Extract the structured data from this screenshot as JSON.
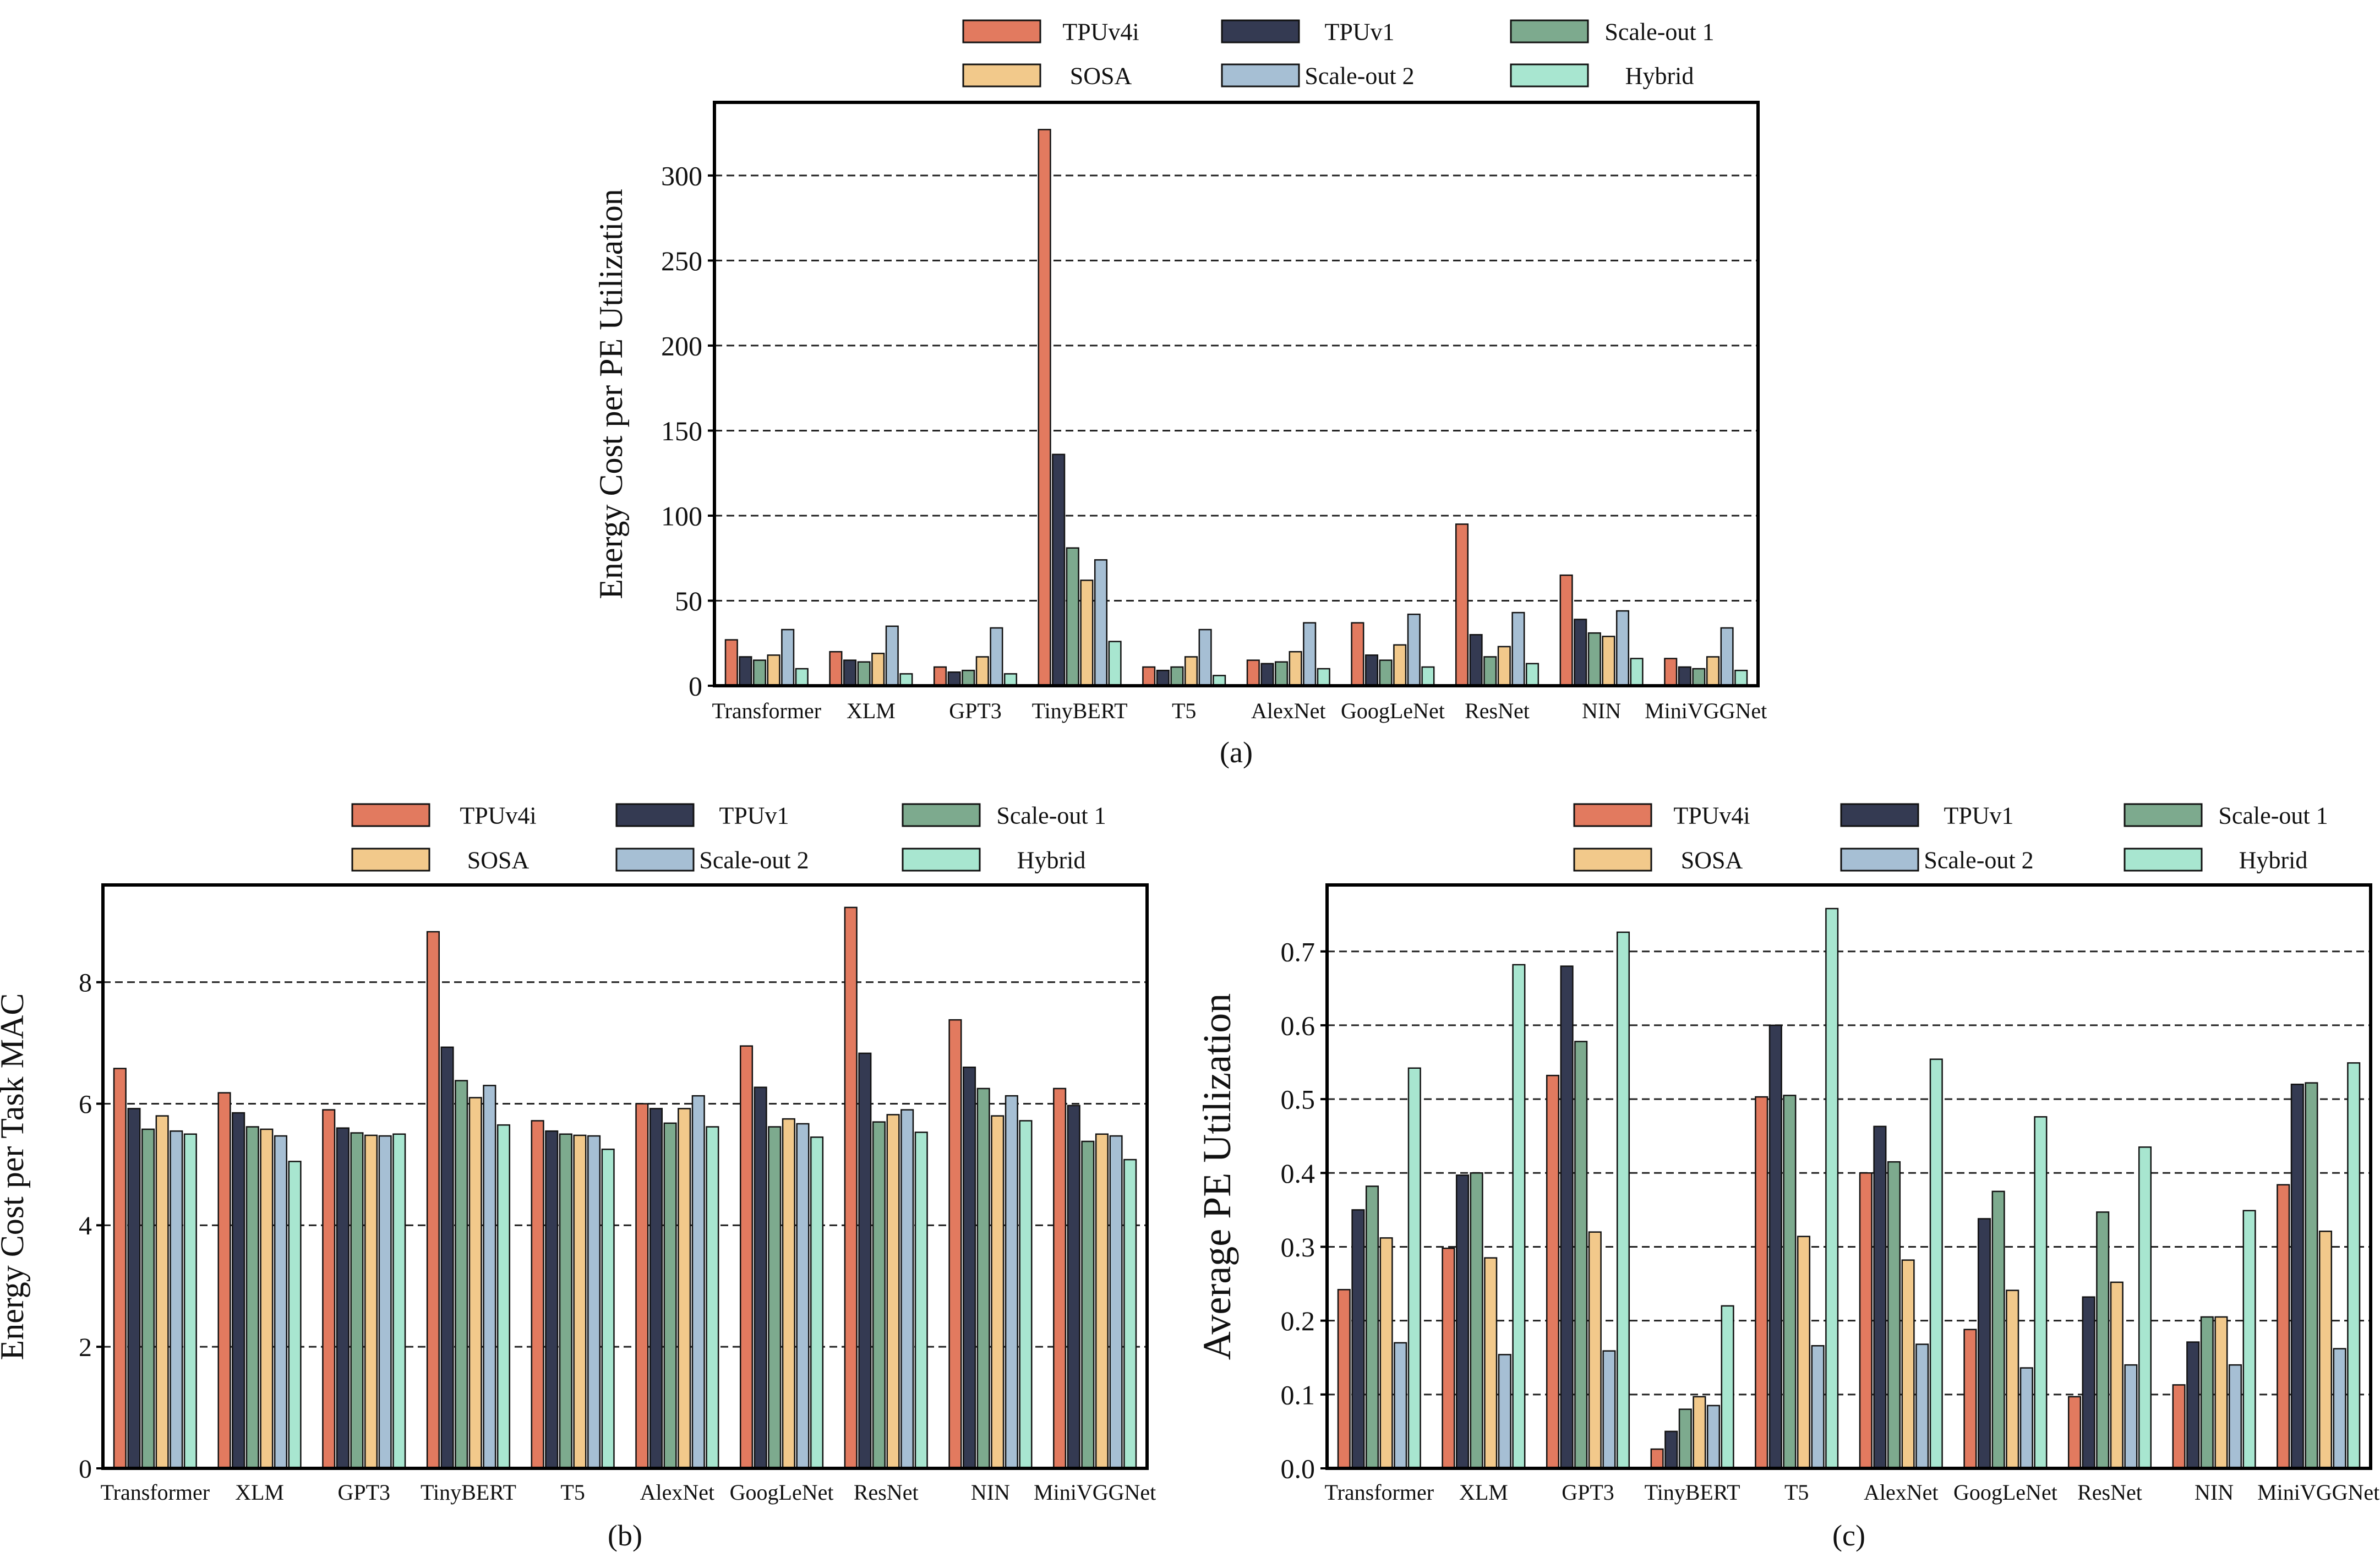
{
  "figure": {
    "series_colors": [
      "#e27a5f",
      "#343a52",
      "#7daa8e",
      "#f2c98b",
      "#a6bfd4",
      "#a8e6d0"
    ],
    "bar_edge": "#111111"
  },
  "chart_data": [
    {
      "type": "bar",
      "panel": "a",
      "caption": "(a)",
      "ylabel": "Energy Cost per PE Utilization",
      "ylim": [
        0,
        343
      ],
      "yticks": [
        0,
        50,
        100,
        150,
        200,
        250,
        300
      ],
      "ytick_labels": [
        "0",
        "50",
        "100",
        "150",
        "200",
        "250",
        "300"
      ],
      "grid": "dashed horizontal",
      "legend": "top",
      "categories": [
        "Transformer",
        "XLM",
        "GPT3",
        "TinyBERT",
        "T5",
        "AlexNet",
        "GoogLeNet",
        "ResNet",
        "NIN",
        "MiniVGGNet"
      ],
      "series": [
        {
          "name": "TPUv4i",
          "values": [
            27,
            20,
            11,
            327,
            11,
            15,
            37,
            95,
            65,
            16
          ]
        },
        {
          "name": "TPUv1",
          "values": [
            17,
            15,
            8,
            136,
            9,
            13,
            18,
            30,
            39,
            11
          ]
        },
        {
          "name": "Scale-out 1",
          "values": [
            15,
            14,
            9,
            81,
            11,
            14,
            15,
            17,
            31,
            10
          ]
        },
        {
          "name": "SOSA",
          "values": [
            18,
            19,
            17,
            62,
            17,
            20,
            24,
            23,
            29,
            17
          ]
        },
        {
          "name": "Scale-out 2",
          "values": [
            33,
            35,
            34,
            74,
            33,
            37,
            42,
            43,
            44,
            34
          ]
        },
        {
          "name": "Hybrid",
          "values": [
            10,
            7,
            7,
            26,
            6,
            10,
            11,
            13,
            16,
            9
          ]
        }
      ]
    },
    {
      "type": "bar",
      "panel": "b",
      "caption": "(b)",
      "ylabel": "Energy Cost per Task MAC",
      "ylim": [
        0,
        9.6
      ],
      "yticks": [
        0,
        2,
        4,
        6,
        8
      ],
      "ytick_labels": [
        "0",
        "2",
        "4",
        "6",
        "8"
      ],
      "grid": "dashed horizontal",
      "legend": "top",
      "categories": [
        "Transformer",
        "XLM",
        "GPT3",
        "TinyBERT",
        "T5",
        "AlexNet",
        "GoogLeNet",
        "ResNet",
        "NIN",
        "MiniVGGNet"
      ],
      "series": [
        {
          "name": "TPUv4i",
          "values": [
            6.58,
            6.18,
            5.9,
            8.83,
            5.72,
            6.0,
            6.95,
            9.23,
            7.38,
            6.25
          ]
        },
        {
          "name": "TPUv1",
          "values": [
            5.92,
            5.85,
            5.6,
            6.93,
            5.55,
            5.92,
            6.27,
            6.83,
            6.6,
            5.97
          ]
        },
        {
          "name": "Scale-out 1",
          "values": [
            5.58,
            5.62,
            5.52,
            6.38,
            5.5,
            5.68,
            5.62,
            5.7,
            6.25,
            5.38
          ]
        },
        {
          "name": "SOSA",
          "values": [
            5.8,
            5.58,
            5.48,
            6.1,
            5.48,
            5.92,
            5.75,
            5.82,
            5.8,
            5.5
          ]
        },
        {
          "name": "Scale-out 2",
          "values": [
            5.55,
            5.47,
            5.47,
            6.3,
            5.47,
            6.13,
            5.67,
            5.9,
            6.13,
            5.47
          ]
        },
        {
          "name": "Hybrid",
          "values": [
            5.5,
            5.05,
            5.5,
            5.65,
            5.25,
            5.62,
            5.45,
            5.53,
            5.72,
            5.08
          ]
        }
      ]
    },
    {
      "type": "bar",
      "panel": "c",
      "caption": "(c)",
      "ylabel": "Average PE Utilization",
      "ylim": [
        0,
        0.79
      ],
      "yticks": [
        0.0,
        0.1,
        0.2,
        0.3,
        0.4,
        0.5,
        0.6,
        0.7
      ],
      "ytick_labels": [
        "0.0",
        "0.1",
        "0.2",
        "0.3",
        "0.4",
        "0.5",
        "0.6",
        "0.7"
      ],
      "grid": "dashed horizontal",
      "legend": "top",
      "categories": [
        "Transformer",
        "XLM",
        "GPT3",
        "TinyBERT",
        "T5",
        "AlexNet",
        "GoogLeNet",
        "ResNet",
        "NIN",
        "MiniVGGNet"
      ],
      "series": [
        {
          "name": "TPUv4i",
          "values": [
            0.242,
            0.298,
            0.532,
            0.026,
            0.503,
            0.4,
            0.188,
            0.097,
            0.113,
            0.384
          ]
        },
        {
          "name": "TPUv1",
          "values": [
            0.35,
            0.397,
            0.68,
            0.05,
            0.6,
            0.463,
            0.338,
            0.232,
            0.171,
            0.52
          ]
        },
        {
          "name": "Scale-out 1",
          "values": [
            0.382,
            0.4,
            0.578,
            0.08,
            0.505,
            0.415,
            0.375,
            0.347,
            0.205,
            0.522
          ]
        },
        {
          "name": "SOSA",
          "values": [
            0.312,
            0.285,
            0.32,
            0.097,
            0.314,
            0.282,
            0.241,
            0.252,
            0.205,
            0.321
          ]
        },
        {
          "name": "Scale-out 2",
          "values": [
            0.17,
            0.154,
            0.159,
            0.085,
            0.166,
            0.168,
            0.136,
            0.14,
            0.14,
            0.162
          ]
        },
        {
          "name": "Hybrid",
          "values": [
            0.542,
            0.682,
            0.726,
            0.22,
            0.758,
            0.554,
            0.476,
            0.435,
            0.349,
            0.549
          ]
        }
      ]
    }
  ]
}
